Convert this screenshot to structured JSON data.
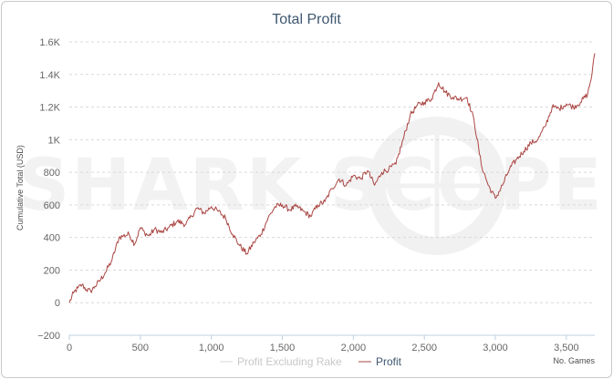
{
  "chart_data": {
    "type": "line",
    "title": "Total Profit",
    "ylabel": "Cumulative Total (USD)",
    "xlabel": "No. Games",
    "xlim": [
      0,
      3700
    ],
    "ylim": [
      -200,
      1600
    ],
    "x_ticks": [
      0,
      500,
      1000,
      1500,
      2000,
      2500,
      3000,
      3500
    ],
    "x_tick_labels": [
      "0",
      "500",
      "1,000",
      "1,500",
      "2,000",
      "2,500",
      "3,000",
      "3,500"
    ],
    "y_ticks": [
      -200,
      0,
      200,
      400,
      600,
      800,
      1000,
      1200,
      1400,
      1600
    ],
    "y_tick_labels": [
      "−200",
      "0",
      "200",
      "400",
      "600",
      "800",
      "1K",
      "1.2K",
      "1.4K",
      "1.6K"
    ],
    "grid": "horizontal-dashed",
    "legend_position": "bottom-center",
    "watermark": "SHARK SCOPE",
    "series": [
      {
        "name": "Profit Excluding Rake",
        "color": "#d8d8d8",
        "x": [],
        "y": []
      },
      {
        "name": "Profit",
        "color": "#aa4643",
        "x": [
          0,
          30,
          60,
          90,
          120,
          150,
          180,
          210,
          250,
          300,
          350,
          380,
          420,
          460,
          500,
          530,
          560,
          600,
          650,
          700,
          760,
          820,
          860,
          900,
          950,
          1000,
          1050,
          1100,
          1150,
          1200,
          1250,
          1300,
          1350,
          1400,
          1450,
          1500,
          1550,
          1600,
          1650,
          1700,
          1750,
          1800,
          1850,
          1900,
          1950,
          2000,
          2050,
          2100,
          2150,
          2200,
          2250,
          2300,
          2350,
          2400,
          2450,
          2500,
          2550,
          2600,
          2650,
          2700,
          2750,
          2800,
          2850,
          2900,
          2950,
          3000,
          3050,
          3100,
          3150,
          3200,
          3250,
          3300,
          3350,
          3400,
          3450,
          3500,
          3550,
          3600,
          3650,
          3680,
          3700
        ],
        "y": [
          0,
          60,
          90,
          110,
          80,
          70,
          100,
          130,
          180,
          260,
          400,
          410,
          420,
          360,
          460,
          430,
          410,
          450,
          430,
          460,
          500,
          480,
          530,
          580,
          550,
          590,
          560,
          520,
          420,
          350,
          300,
          370,
          420,
          520,
          590,
          600,
          570,
          590,
          560,
          530,
          600,
          620,
          700,
          760,
          720,
          780,
          760,
          810,
          720,
          800,
          820,
          850,
          1000,
          1150,
          1210,
          1230,
          1250,
          1350,
          1290,
          1260,
          1250,
          1260,
          1120,
          850,
          720,
          640,
          720,
          820,
          880,
          930,
          980,
          1000,
          1080,
          1200,
          1190,
          1220,
          1200,
          1230,
          1280,
          1400,
          1530
        ]
      }
    ]
  }
}
